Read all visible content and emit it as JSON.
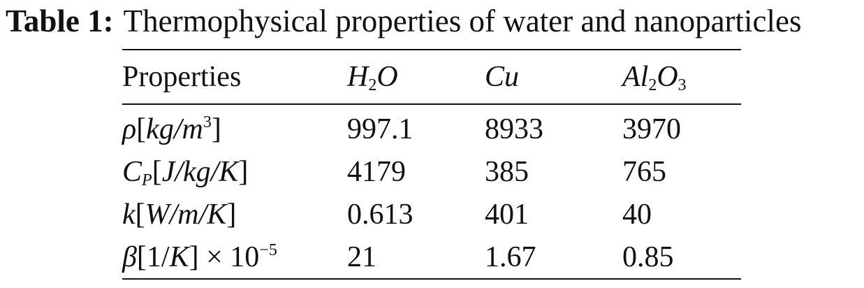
{
  "caption": {
    "label": "Table 1:",
    "title": "Thermophysical properties of water and nanoparticles"
  },
  "table": {
    "header": {
      "property": "Properties",
      "h2o_main": "H",
      "h2o_sub": "2",
      "h2o_tail": "O",
      "cu": "Cu",
      "al2o3_a": "Al",
      "al2o3_a_sub": "2",
      "al2o3_b": "O",
      "al2o3_b_sub": "3"
    },
    "rows": [
      {
        "prop_symbol": "ρ",
        "prop_open": "[",
        "prop_unit": "kg/m",
        "prop_sup": "3",
        "prop_close": "]",
        "h2o": "997.1",
        "cu": "8933",
        "al2o3": "3970"
      },
      {
        "prop_symbol": "C",
        "prop_sub": "P",
        "prop_open": "[",
        "prop_unit": "J/kg/K",
        "prop_close": "]",
        "h2o": "4179",
        "cu": "385",
        "al2o3": "765"
      },
      {
        "prop_symbol": "k",
        "prop_open": "[",
        "prop_unit": "W/m/K",
        "prop_close": "]",
        "h2o": "0.613",
        "cu": "401",
        "al2o3": "40"
      },
      {
        "prop_symbol": "β",
        "prop_open": "[1/",
        "prop_unit": "K",
        "prop_close": "] × 10",
        "prop_sup": "−5",
        "h2o": "21",
        "cu": "1.67",
        "al2o3": "0.85"
      }
    ]
  }
}
